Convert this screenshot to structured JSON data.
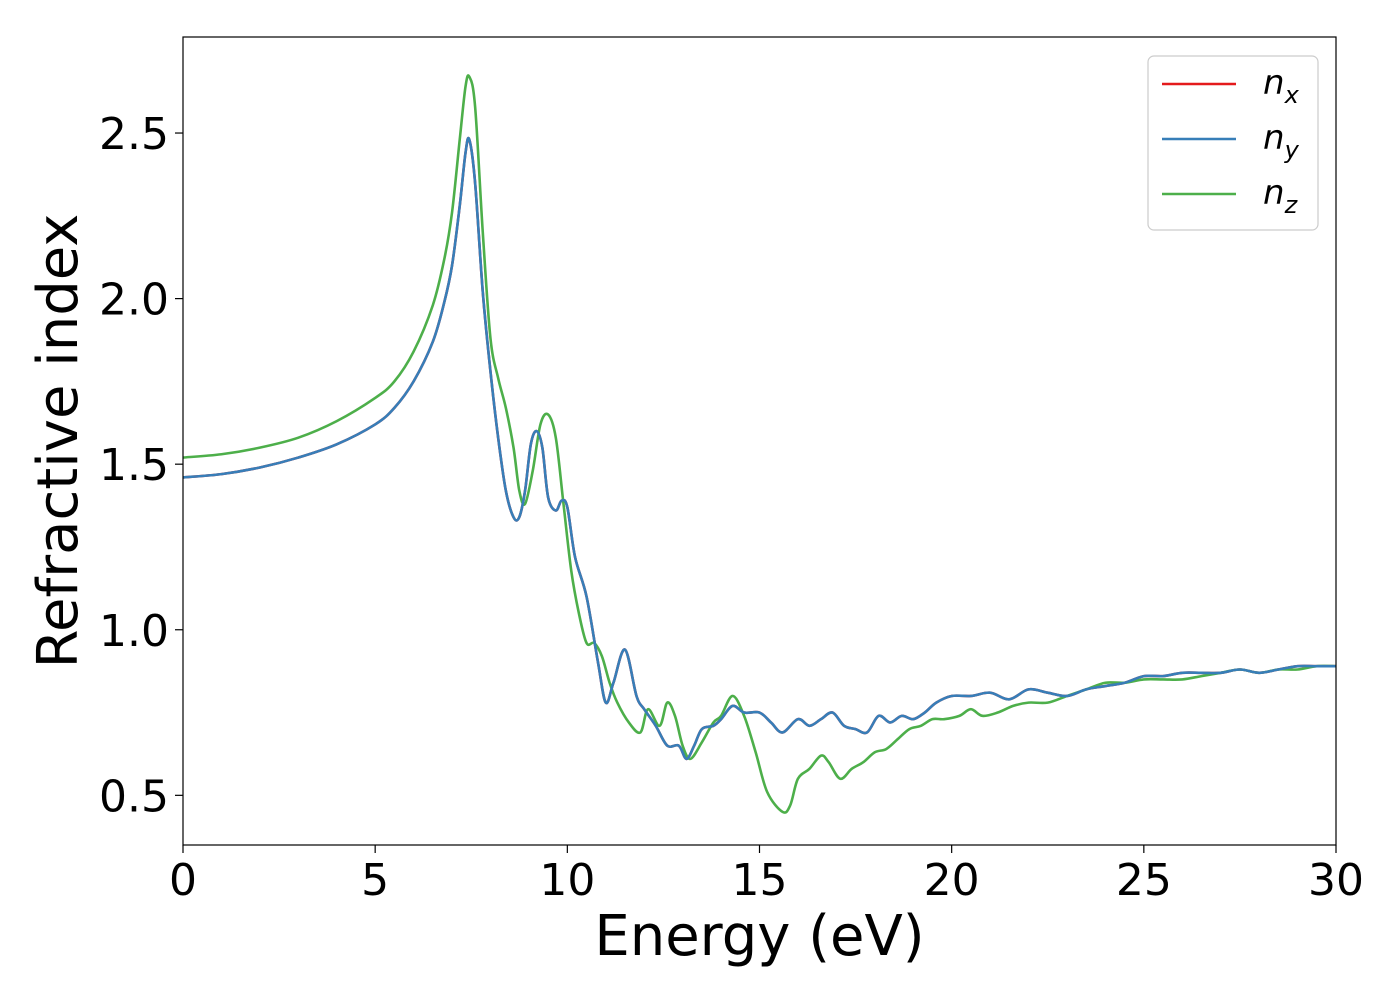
{
  "chart_data": {
    "type": "line",
    "title": "",
    "xlabel": "Energy (eV)",
    "ylabel": "Refractive index",
    "xlim": [
      0,
      30
    ],
    "ylim": [
      0.35,
      2.79
    ],
    "xticks": [
      0,
      5,
      10,
      15,
      20,
      25,
      30
    ],
    "xtick_labels": [
      "0",
      "5",
      "10",
      "15",
      "20",
      "25",
      "30"
    ],
    "yticks": [
      0.5,
      1.0,
      1.5,
      2.0,
      2.5
    ],
    "ytick_labels": [
      "0.5",
      "1.0",
      "1.5",
      "2.0",
      "2.5"
    ],
    "grid": false,
    "legend_position": "top-right",
    "series": [
      {
        "name": "n_x",
        "label_main": "n",
        "label_sub": "x",
        "color": "#e41a1c",
        "x": [
          0,
          1,
          2,
          3,
          4,
          5,
          5.5,
          6,
          6.5,
          6.8,
          7.0,
          7.2,
          7.35,
          7.45,
          7.6,
          7.8,
          8.0,
          8.2,
          8.4,
          8.6,
          8.75,
          8.9,
          9.05,
          9.2,
          9.35,
          9.5,
          9.7,
          9.85,
          10.0,
          10.2,
          10.5,
          10.8,
          11.0,
          11.2,
          11.5,
          11.8,
          12.0,
          12.3,
          12.6,
          12.9,
          13.1,
          13.3,
          13.5,
          13.8,
          14.0,
          14.3,
          14.6,
          15.0,
          15.3,
          15.6,
          16.0,
          16.3,
          16.6,
          16.9,
          17.2,
          17.5,
          17.8,
          18.1,
          18.4,
          18.7,
          19.0,
          19.3,
          19.6,
          20.0,
          20.5,
          21.0,
          21.5,
          22.0,
          22.5,
          23.0,
          23.5,
          24.0,
          24.5,
          25.0,
          25.5,
          26.0,
          26.5,
          27.0,
          27.5,
          28.0,
          28.5,
          29.0,
          29.5,
          30.0
        ],
        "y": [
          1.46,
          1.47,
          1.49,
          1.52,
          1.56,
          1.62,
          1.67,
          1.75,
          1.87,
          1.99,
          2.1,
          2.28,
          2.44,
          2.48,
          2.35,
          2.02,
          1.78,
          1.58,
          1.42,
          1.34,
          1.34,
          1.42,
          1.56,
          1.6,
          1.55,
          1.4,
          1.36,
          1.39,
          1.37,
          1.22,
          1.1,
          0.9,
          0.78,
          0.84,
          0.94,
          0.8,
          0.76,
          0.71,
          0.65,
          0.65,
          0.61,
          0.65,
          0.7,
          0.71,
          0.73,
          0.77,
          0.75,
          0.75,
          0.72,
          0.69,
          0.73,
          0.71,
          0.73,
          0.75,
          0.71,
          0.7,
          0.69,
          0.74,
          0.72,
          0.74,
          0.73,
          0.75,
          0.78,
          0.8,
          0.8,
          0.81,
          0.79,
          0.82,
          0.81,
          0.8,
          0.82,
          0.83,
          0.84,
          0.86,
          0.86,
          0.87,
          0.87,
          0.87,
          0.88,
          0.87,
          0.88,
          0.89,
          0.89,
          0.89
        ]
      },
      {
        "name": "n_y",
        "label_main": "n",
        "label_sub": "y",
        "color": "#377eb8",
        "x": [
          0,
          1,
          2,
          3,
          4,
          5,
          5.5,
          6,
          6.5,
          6.8,
          7.0,
          7.2,
          7.35,
          7.45,
          7.6,
          7.8,
          8.0,
          8.2,
          8.4,
          8.6,
          8.75,
          8.9,
          9.05,
          9.2,
          9.35,
          9.5,
          9.7,
          9.85,
          10.0,
          10.2,
          10.5,
          10.8,
          11.0,
          11.2,
          11.5,
          11.8,
          12.0,
          12.3,
          12.6,
          12.9,
          13.1,
          13.3,
          13.5,
          13.8,
          14.0,
          14.3,
          14.6,
          15.0,
          15.3,
          15.6,
          16.0,
          16.3,
          16.6,
          16.9,
          17.2,
          17.5,
          17.8,
          18.1,
          18.4,
          18.7,
          19.0,
          19.3,
          19.6,
          20.0,
          20.5,
          21.0,
          21.5,
          22.0,
          22.5,
          23.0,
          23.5,
          24.0,
          24.5,
          25.0,
          25.5,
          26.0,
          26.5,
          27.0,
          27.5,
          28.0,
          28.5,
          29.0,
          29.5,
          30.0
        ],
        "y": [
          1.46,
          1.47,
          1.49,
          1.52,
          1.56,
          1.62,
          1.67,
          1.75,
          1.87,
          1.99,
          2.1,
          2.28,
          2.44,
          2.48,
          2.35,
          2.02,
          1.78,
          1.58,
          1.42,
          1.34,
          1.34,
          1.42,
          1.56,
          1.6,
          1.55,
          1.4,
          1.36,
          1.39,
          1.37,
          1.22,
          1.1,
          0.9,
          0.78,
          0.84,
          0.94,
          0.8,
          0.76,
          0.71,
          0.65,
          0.65,
          0.61,
          0.65,
          0.7,
          0.71,
          0.73,
          0.77,
          0.75,
          0.75,
          0.72,
          0.69,
          0.73,
          0.71,
          0.73,
          0.75,
          0.71,
          0.7,
          0.69,
          0.74,
          0.72,
          0.74,
          0.73,
          0.75,
          0.78,
          0.8,
          0.8,
          0.81,
          0.79,
          0.82,
          0.81,
          0.8,
          0.82,
          0.83,
          0.84,
          0.86,
          0.86,
          0.87,
          0.87,
          0.87,
          0.88,
          0.87,
          0.88,
          0.89,
          0.89,
          0.89
        ]
      },
      {
        "name": "n_z",
        "label_main": "n",
        "label_sub": "z",
        "color": "#4daf4a",
        "x": [
          0,
          1,
          2,
          3,
          4,
          5,
          5.5,
          6,
          6.5,
          6.8,
          7.0,
          7.2,
          7.35,
          7.45,
          7.6,
          7.8,
          8.0,
          8.2,
          8.4,
          8.6,
          8.75,
          8.9,
          9.1,
          9.3,
          9.5,
          9.7,
          9.9,
          10.1,
          10.3,
          10.5,
          10.7,
          10.9,
          11.1,
          11.3,
          11.6,
          11.9,
          12.1,
          12.4,
          12.6,
          12.8,
          13.0,
          13.2,
          13.5,
          13.8,
          14.0,
          14.3,
          14.6,
          14.9,
          15.2,
          15.6,
          15.8,
          16.0,
          16.3,
          16.6,
          16.8,
          17.1,
          17.4,
          17.7,
          18.0,
          18.3,
          18.6,
          18.9,
          19.2,
          19.5,
          19.8,
          20.2,
          20.5,
          20.8,
          21.2,
          21.6,
          22.0,
          22.5,
          23.0,
          23.5,
          24.0,
          24.5,
          25.0,
          25.5,
          26.0,
          26.5,
          27.0,
          27.5,
          28.0,
          28.5,
          29.0,
          29.5,
          30.0
        ],
        "y": [
          1.52,
          1.53,
          1.55,
          1.58,
          1.63,
          1.7,
          1.75,
          1.84,
          1.98,
          2.12,
          2.26,
          2.48,
          2.64,
          2.67,
          2.58,
          2.2,
          1.88,
          1.76,
          1.67,
          1.55,
          1.42,
          1.38,
          1.48,
          1.62,
          1.65,
          1.58,
          1.38,
          1.18,
          1.05,
          0.96,
          0.96,
          0.92,
          0.84,
          0.78,
          0.72,
          0.69,
          0.76,
          0.71,
          0.78,
          0.74,
          0.65,
          0.61,
          0.66,
          0.72,
          0.74,
          0.8,
          0.74,
          0.63,
          0.51,
          0.45,
          0.47,
          0.55,
          0.58,
          0.62,
          0.6,
          0.55,
          0.58,
          0.6,
          0.63,
          0.64,
          0.67,
          0.7,
          0.71,
          0.73,
          0.73,
          0.74,
          0.76,
          0.74,
          0.75,
          0.77,
          0.78,
          0.78,
          0.8,
          0.82,
          0.84,
          0.84,
          0.85,
          0.85,
          0.85,
          0.86,
          0.87,
          0.88,
          0.87,
          0.88,
          0.88,
          0.89,
          0.89
        ]
      }
    ]
  }
}
